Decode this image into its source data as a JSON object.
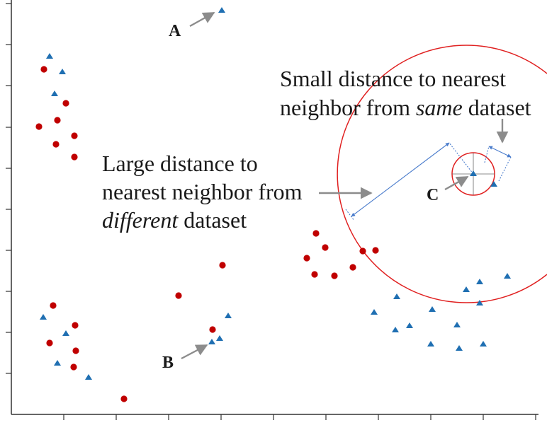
{
  "colors": {
    "red": "#c00000",
    "blue": "#1f6fb2",
    "axis": "#333333",
    "arrow_gray": "#8c8c8c",
    "circle_red": "#e02020",
    "measure_blue": "#4a7ccc"
  },
  "labels": {
    "A": "A",
    "B": "B",
    "C": "C"
  },
  "annotations": {
    "small_line1": "Small distance to nearest",
    "small_line2_pre": "neighbor from ",
    "small_line2_em": "same",
    "small_line2_post": " dataset",
    "large_line1": "Large distance to",
    "large_line2": "nearest neighbor from",
    "large_line3_em": "different",
    "large_line3_post": " dataset"
  },
  "icons": {
    "marker_red": "red-circle-marker-icon",
    "marker_blue": "blue-triangle-marker-icon",
    "arrow": "arrow-icon"
  }
}
